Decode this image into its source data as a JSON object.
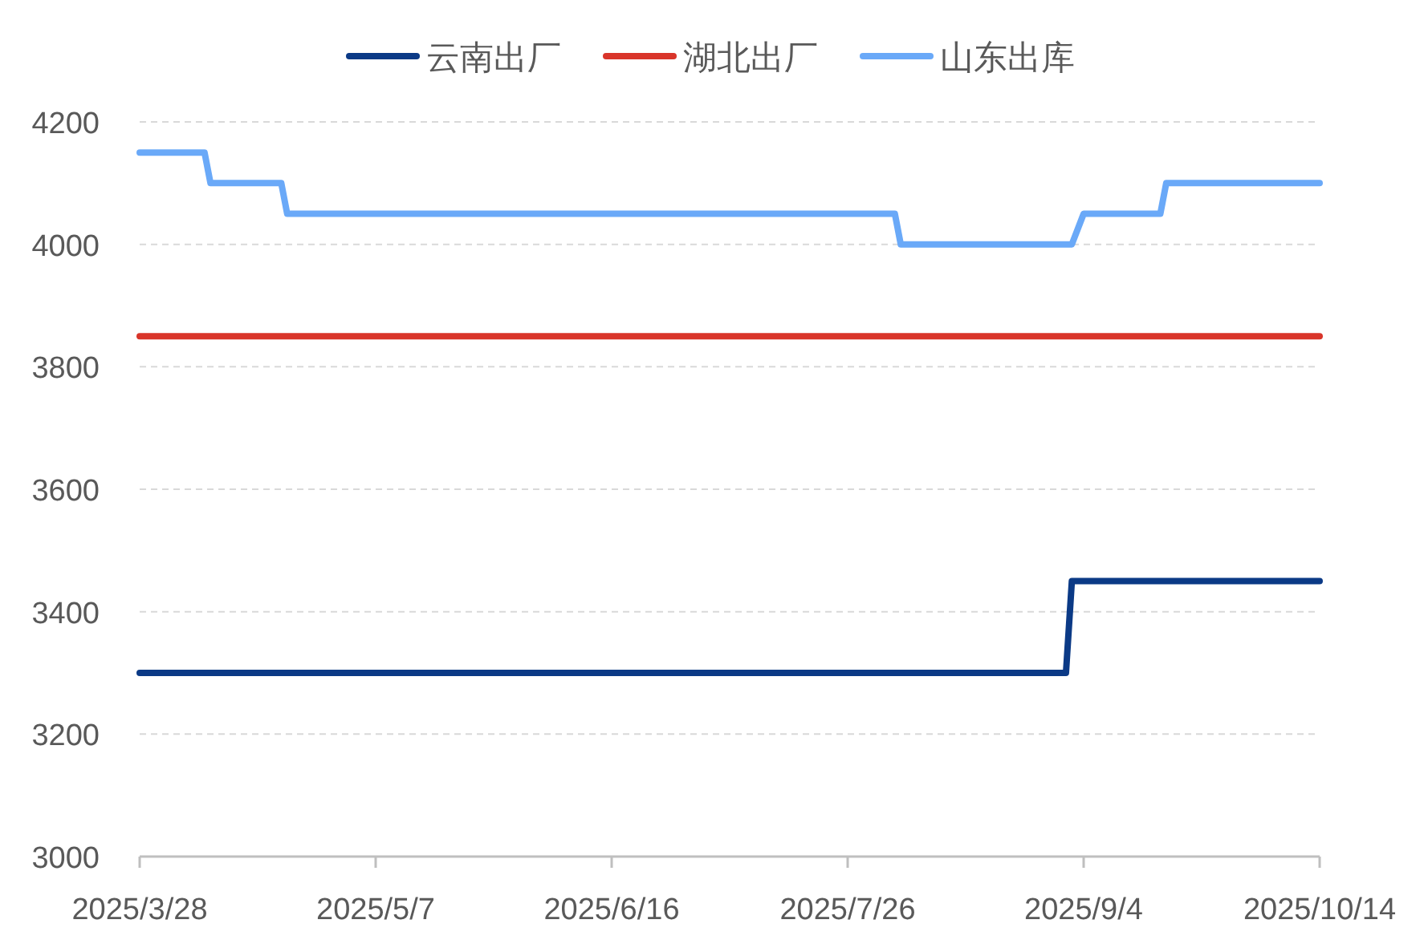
{
  "chart_data": {
    "type": "line",
    "series": [
      {
        "name": "云南出厂",
        "color": "#0b3a86",
        "x": [
          "2025-03-28",
          "2025-09-01",
          "2025-09-02",
          "2025-10-14"
        ],
        "values": [
          3300,
          3300,
          3450,
          3450
        ]
      },
      {
        "name": "湖北出厂",
        "color": "#d9352a",
        "x": [
          "2025-03-28",
          "2025-10-14"
        ],
        "values": [
          3850,
          3850
        ]
      },
      {
        "name": "山东出库",
        "color": "#6aa9f8",
        "x": [
          "2025-03-28",
          "2025-04-08",
          "2025-04-09",
          "2025-04-21",
          "2025-04-22",
          "2025-08-03",
          "2025-08-04",
          "2025-09-02",
          "2025-09-04",
          "2025-09-17",
          "2025-09-18",
          "2025-10-14"
        ],
        "values": [
          4150,
          4150,
          4100,
          4100,
          4050,
          4050,
          4000,
          4000,
          4050,
          4050,
          4100,
          4100
        ]
      }
    ],
    "xlim": [
      "2025-03-28",
      "2025-10-14"
    ],
    "xticks": [
      {
        "value": "2025-03-28",
        "label": "2025/3/28"
      },
      {
        "value": "2025-05-07",
        "label": "2025/5/7"
      },
      {
        "value": "2025-06-16",
        "label": "2025/6/16"
      },
      {
        "value": "2025-07-26",
        "label": "2025/7/26"
      },
      {
        "value": "2025-09-04",
        "label": "2025/9/4"
      },
      {
        "value": "2025-10-14",
        "label": "2025/10/14"
      }
    ],
    "ylim": [
      3000,
      4200
    ],
    "yticks": [
      3000,
      3200,
      3400,
      3600,
      3800,
      4000,
      4200
    ],
    "grid": "y",
    "legend": "top",
    "line_style": "solid",
    "marker": "none"
  }
}
